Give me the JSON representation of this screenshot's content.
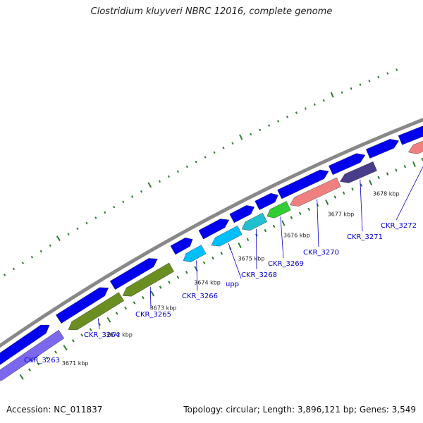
{
  "title": "Clostridium kluyveri NBRC 12016, complete genome",
  "footer": {
    "accession": "Accession: NC_011837",
    "summary": "Topology: circular; Length: 3,896,121 bp; Genes: 3,549"
  },
  "colors": {
    "backbone": "#888888",
    "tick": "#2e7d2e",
    "forward_gene": "#0000ee",
    "leader_line": "#0000cc"
  },
  "kbp_labels": [
    "3671 kbp",
    "3672 kbp",
    "3673 kbp",
    "3674 kbp",
    "3675 kbp",
    "3676 kbp",
    "3677 kbp",
    "3678 kbp"
  ],
  "forward_genes": [
    {
      "color": "#0000ee"
    },
    {
      "color": "#0000ee"
    },
    {
      "color": "#0000ee"
    },
    {
      "color": "#0000ee"
    },
    {
      "color": "#0000ee"
    },
    {
      "color": "#0000ee"
    },
    {
      "color": "#0000ee"
    },
    {
      "color": "#0000ee"
    },
    {
      "color": "#0000ee"
    },
    {
      "color": "#0000ee"
    },
    {
      "color": "#0000ee"
    }
  ],
  "reverse_genes": [
    {
      "name": "CKR_3263",
      "color": "#7b68ee"
    },
    {
      "name": "CKR_3264",
      "color": "#6b8e23"
    },
    {
      "name": "CKR_3265",
      "color": "#6b8e23"
    },
    {
      "name": "CKR_3266",
      "color": "#00bfff"
    },
    {
      "name": "upp",
      "color": "#00bfff"
    },
    {
      "name": "CKR_3268",
      "color": "#20c0d0"
    },
    {
      "name": "CKR_3269",
      "color": "#32cd32"
    },
    {
      "name": "CKR_3270",
      "color": "#f08080"
    },
    {
      "name": "CKR_3271",
      "color": "#483d8b"
    },
    {
      "name": "CKR_3272",
      "color": "#f08080"
    }
  ]
}
